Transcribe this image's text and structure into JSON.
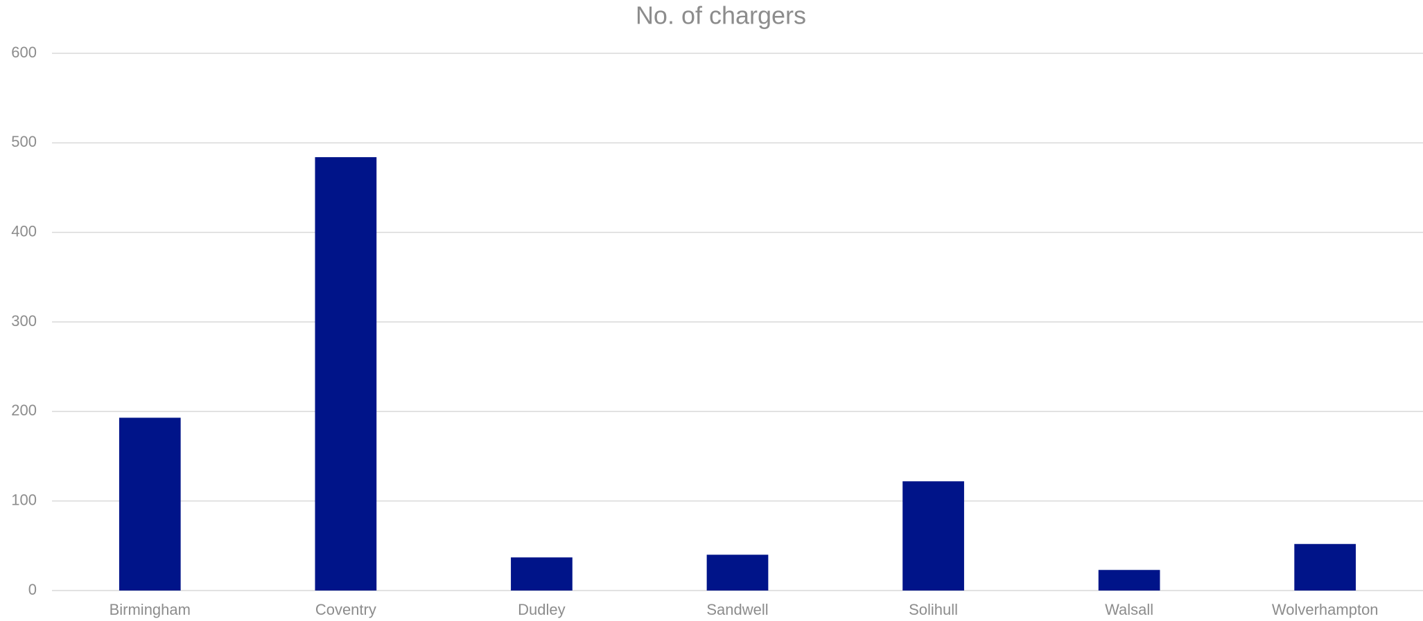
{
  "chart_data": {
    "type": "bar",
    "title": "No. of chargers",
    "categories": [
      "Birmingham",
      "Coventry",
      "Dudley",
      "Sandwell",
      "Solihull",
      "Walsall",
      "Wolverhampton"
    ],
    "values": [
      193,
      484,
      37,
      40,
      122,
      23,
      52
    ],
    "color": "#001489",
    "ylim": [
      0,
      600
    ],
    "yticks": [
      0,
      100,
      200,
      300,
      400,
      500,
      600
    ],
    "grid": true
  }
}
